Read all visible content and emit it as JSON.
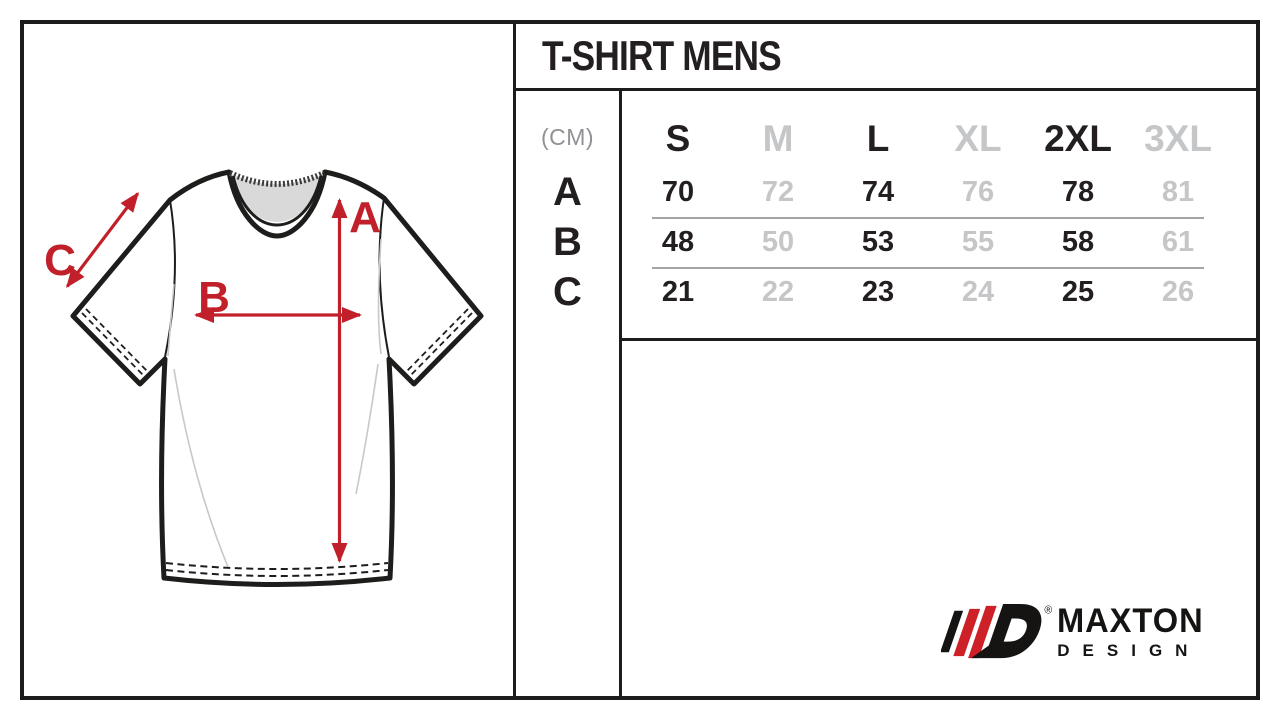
{
  "title": "T-SHIRT MENS",
  "unit_label": "(CM)",
  "diagram": {
    "labels": {
      "a": "A",
      "b": "B",
      "c": "C"
    }
  },
  "table": {
    "columns": [
      {
        "label": "S",
        "muted": false
      },
      {
        "label": "M",
        "muted": true
      },
      {
        "label": "L",
        "muted": false
      },
      {
        "label": "XL",
        "muted": true
      },
      {
        "label": "2XL",
        "muted": false
      },
      {
        "label": "3XL",
        "muted": true
      }
    ],
    "rows": [
      {
        "label": "A",
        "values": [
          "70",
          "72",
          "74",
          "76",
          "78",
          "81"
        ]
      },
      {
        "label": "B",
        "values": [
          "48",
          "50",
          "53",
          "55",
          "58",
          "61"
        ]
      },
      {
        "label": "C",
        "values": [
          "21",
          "22",
          "23",
          "24",
          "25",
          "26"
        ]
      }
    ]
  },
  "logo": {
    "brand": "MAXTON",
    "sub": "DESIGN",
    "registered": "®"
  },
  "colors": {
    "accent_red": "#c1202a",
    "logo_red": "#ce2127",
    "ink": "#231f20",
    "muted_text": "#c5c6c8",
    "unit_text": "#8f9194",
    "outline_ink": "#1d1d1b",
    "collar_gray": "#d9d9d9"
  }
}
